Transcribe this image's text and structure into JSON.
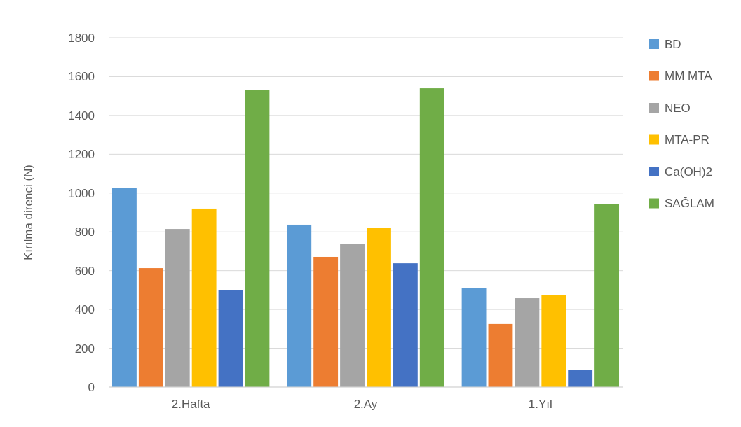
{
  "chart_data": {
    "type": "bar",
    "ylabel": "Kırılma direnci (N)",
    "categories": [
      "2.Hafta",
      "2.Ay",
      "1.Yıl"
    ],
    "series": [
      {
        "name": "BD",
        "color": "#5b9bd5",
        "values": [
          1028,
          837,
          512
        ]
      },
      {
        "name": "MM MTA",
        "color": "#ed7d31",
        "values": [
          613,
          671,
          325
        ]
      },
      {
        "name": "NEO",
        "color": "#a5a5a5",
        "values": [
          815,
          736,
          458
        ]
      },
      {
        "name": "MTA-PR",
        "color": "#ffc000",
        "values": [
          920,
          819,
          476
        ]
      },
      {
        "name": "Ca(OH)2",
        "color": "#4472c4",
        "values": [
          501,
          638,
          87
        ]
      },
      {
        "name": "SAĞLAM",
        "color": "#70ad47",
        "values": [
          1533,
          1540,
          942
        ]
      }
    ],
    "ylim": [
      0,
      1800
    ],
    "yticks": [
      0,
      200,
      400,
      600,
      800,
      1000,
      1200,
      1400,
      1600,
      1800
    ],
    "grid": "y",
    "legend": "right"
  }
}
